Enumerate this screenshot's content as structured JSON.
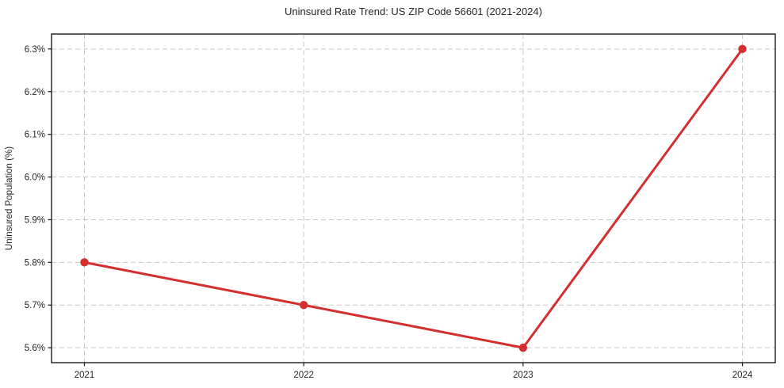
{
  "chart_data": {
    "type": "line",
    "title": "Uninsured Rate Trend: US ZIP Code 56601 (2021-2024)",
    "ylabel": "Uninsured Population (%)",
    "xlabel": "",
    "categories": [
      "2021",
      "2022",
      "2023",
      "2024"
    ],
    "values": [
      5.8,
      5.7,
      5.6,
      6.3
    ],
    "yticks": [
      5.6,
      5.7,
      5.8,
      5.9,
      6.0,
      6.1,
      6.2,
      6.3
    ],
    "ytick_suffix": "%",
    "ytick_decimals": 1,
    "ylim": [
      5.565,
      6.335
    ],
    "x_margin_fraction": 0.05,
    "grid": true,
    "grid_style": "dashed",
    "legend": "none",
    "marker": "circle",
    "line_color": "#d32f2f",
    "marker_color": "#d32f2f",
    "grid_color": "#c9c9c9",
    "axis_color": "#1a1a1a",
    "text_color": "#262626",
    "background_color": "#ffffff"
  }
}
